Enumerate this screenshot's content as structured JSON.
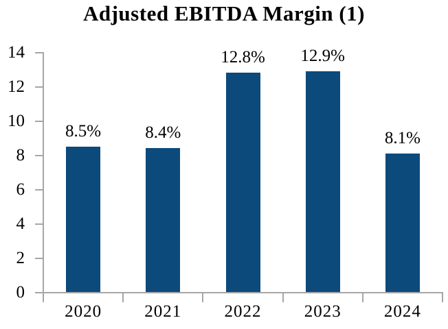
{
  "chart_data": {
    "type": "bar",
    "title": "Adjusted EBITDA Margin (1)",
    "categories": [
      "2020",
      "2021",
      "2022",
      "2023",
      "2024"
    ],
    "values": [
      8.5,
      8.4,
      12.8,
      12.9,
      8.1
    ],
    "data_labels": [
      "8.5%",
      "8.4%",
      "12.8%",
      "12.9%",
      "8.1%"
    ],
    "y_ticks": [
      0,
      2,
      4,
      6,
      8,
      10,
      12,
      14
    ],
    "ylim": [
      0,
      14
    ],
    "xlabel": "",
    "ylabel": "",
    "grid": false,
    "legend": "none",
    "bar_color": "#0c4a7c",
    "axis_color": "#a6a6a6",
    "text_color": "#000000"
  }
}
